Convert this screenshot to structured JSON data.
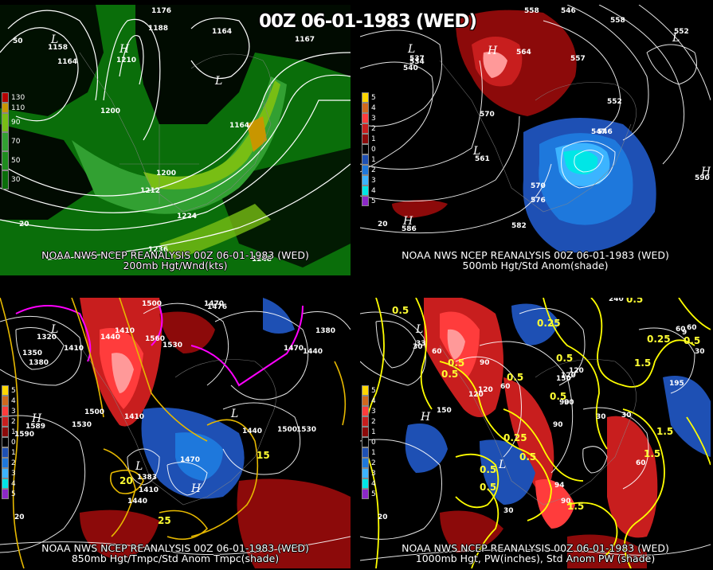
{
  "main_title": "00Z 06-01-1983 (WED)",
  "panels": [
    {
      "caption_line1": "NOAA NWS NCEP REANALYSIS 00Z 06-01-1983 (WED)",
      "caption_line2": "200mb Hgt/Wnd(kts)",
      "legend": [
        "130",
        "110",
        "90",
        "70",
        "50",
        "30"
      ],
      "legend_colors": [
        "#b80000",
        "#c89600",
        "#78be14",
        "#32a032",
        "#1e8c1e",
        "#0a6e0a"
      ],
      "contour_labels": [
        "1176",
        "1188",
        "1164",
        "1164",
        "1200",
        "1200",
        "1212",
        "1224",
        "1236",
        "1248",
        "1210",
        "1167",
        "1158",
        "1164"
      ],
      "edge_labels": [
        "50",
        "20"
      ]
    },
    {
      "caption_line1": "NOAA NWS NCEP REANALYSIS 00Z 06-01-1983 (WED)",
      "caption_line2": "500mb Hgt/Std Anom(shade)",
      "legend": [
        "5",
        "4",
        "3",
        "2",
        "1",
        "0",
        "1",
        "2",
        "3",
        "4",
        "5"
      ],
      "legend_colors": [
        "#ffd700",
        "#d2691e",
        "#ff3c3c",
        "#c81e1e",
        "#8c0a0a",
        "#000000",
        "#1e50b4",
        "#1e78dc",
        "#3cb4ff",
        "#00e6e6",
        "#8c28c8"
      ],
      "contour_labels": [
        "558",
        "546",
        "558",
        "552",
        "534",
        "540",
        "564",
        "570",
        "552",
        "546",
        "570",
        "576",
        "582",
        "537",
        "557",
        "547",
        "561",
        "586",
        "590"
      ],
      "edge_labels": [
        "20"
      ]
    },
    {
      "caption_line1": "NOAA NWS NCEP REANALYSIS 00Z 06-01-1983 (WED)",
      "caption_line2": "850mb Hgt/Tmpc/Std Anom Tmpc(shade)",
      "legend": [
        "5",
        "4",
        "3",
        "2",
        "1",
        "0",
        "1",
        "2",
        "3",
        "4",
        "5"
      ],
      "legend_colors": [
        "#ffd700",
        "#d2691e",
        "#ff3c3c",
        "#c81e1e",
        "#8c0a0a",
        "#000000",
        "#1e50b4",
        "#1e78dc",
        "#3cb4ff",
        "#00e6e6",
        "#8c28c8"
      ],
      "contour_labels": [
        "1500",
        "1470",
        "1440",
        "1410",
        "1350",
        "1380",
        "1410",
        "1560",
        "1530",
        "1500",
        "1590",
        "1530",
        "1470",
        "1410",
        "1440",
        "1530",
        "1500",
        "1410",
        "1440",
        "1380",
        "1470",
        "1320",
        "1440",
        "1476",
        "1383",
        "1589"
      ],
      "yellow_labels": [
        "15",
        "25",
        "20"
      ],
      "edge_labels": [
        "20"
      ]
    },
    {
      "caption_line1": "NOAA NWS NCEP REANALYSIS 00Z 06-01-1983 (WED)",
      "caption_line2": "1000mb Hgt, PW(inches), Std Anom PW (shade)",
      "legend": [
        "5",
        "4",
        "3",
        "2",
        "1",
        "0",
        "1",
        "2",
        "3",
        "4",
        "5"
      ],
      "legend_colors": [
        "#ffd700",
        "#d2691e",
        "#ff3c3c",
        "#c81e1e",
        "#8c0a0a",
        "#000000",
        "#1e50b4",
        "#1e78dc",
        "#3cb4ff",
        "#00e6e6",
        "#8c28c8"
      ],
      "contour_labels": [
        "240",
        "60",
        "30",
        "60",
        "90",
        "120",
        "150",
        "150",
        "120",
        "90",
        "60",
        "30",
        "30",
        "60",
        "90",
        "120",
        "30",
        "90",
        "30",
        "60",
        "120",
        "90",
        "195",
        "94",
        "33",
        "9"
      ],
      "yellow_labels": [
        "0.5",
        "0.5",
        "0.5",
        "0.25",
        "0.5",
        "0.5",
        "0.25",
        "0.5",
        "1.5",
        "0.5",
        "1.5",
        "0.5",
        "0.25",
        "0.5",
        "0.5",
        "1.5",
        "0.5",
        "1.5"
      ],
      "edge_labels": [
        "20"
      ]
    }
  ],
  "hl_symbols": [
    "L",
    "H",
    "L",
    "L",
    "H",
    "L",
    "H",
    "L",
    "H",
    "L",
    "L",
    "H",
    "L",
    "H",
    "L",
    "H",
    "L"
  ]
}
